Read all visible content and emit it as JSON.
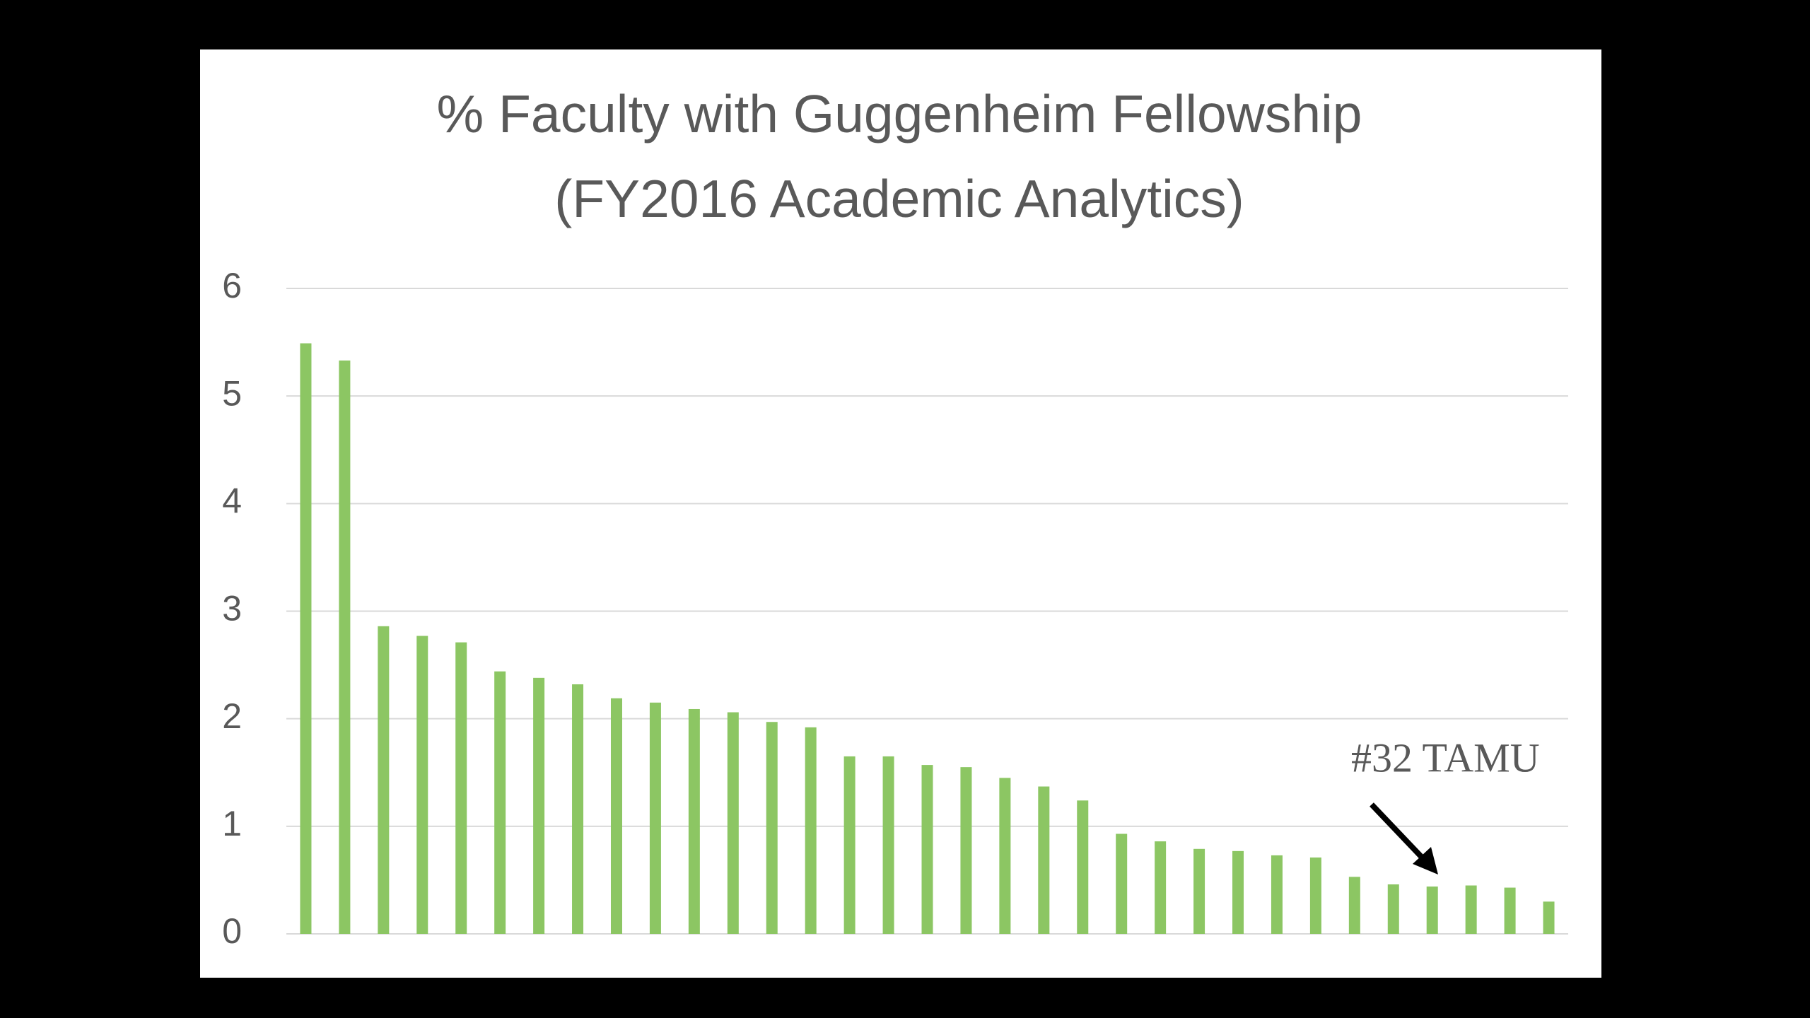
{
  "chart_data": {
    "type": "bar",
    "title": [
      "% Faculty with Guggenheim Fellowship",
      "(FY2016 Academic Analytics)"
    ],
    "values": [
      5.49,
      5.33,
      2.86,
      2.77,
      2.71,
      2.44,
      2.38,
      2.32,
      2.19,
      2.15,
      2.09,
      2.06,
      1.97,
      1.92,
      1.65,
      1.65,
      1.57,
      1.55,
      1.45,
      1.37,
      1.24,
      0.93,
      0.86,
      0.79,
      0.77,
      0.73,
      0.71,
      0.53,
      0.46,
      0.44,
      0.45,
      0.43,
      0.3
    ],
    "color": "#8cc663",
    "ylim": [
      0,
      6
    ],
    "yticks": [
      0,
      1,
      2,
      3,
      4,
      5,
      6
    ],
    "grid": true,
    "annotation": {
      "text": "#32 TAMU",
      "color": "#c00000"
    }
  }
}
